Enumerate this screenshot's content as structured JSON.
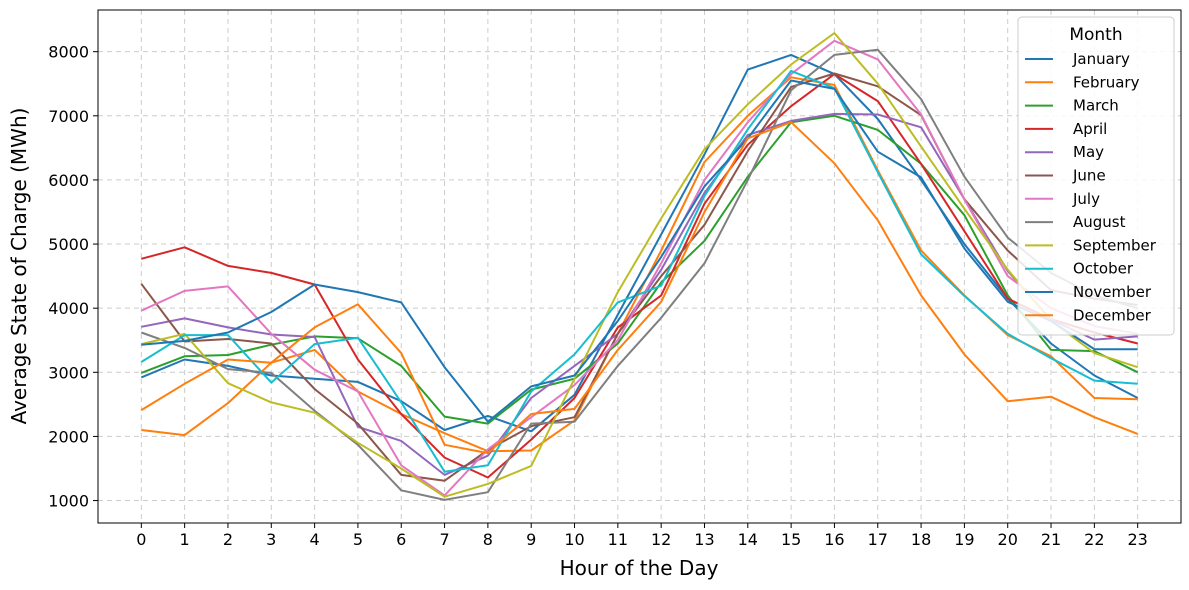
{
  "chart_data": {
    "type": "line",
    "title": "",
    "xlabel": "Hour of the Day",
    "ylabel": "Average State of Charge (MWh)",
    "x": [
      0,
      1,
      2,
      3,
      4,
      5,
      6,
      7,
      8,
      9,
      10,
      11,
      12,
      13,
      14,
      15,
      16,
      17,
      18,
      19,
      20,
      21,
      22,
      23
    ],
    "xlim": [
      -1,
      24
    ],
    "ylim": [
      650,
      8650
    ],
    "yticks": [
      1000,
      2000,
      3000,
      4000,
      5000,
      6000,
      7000,
      8000
    ],
    "grid": true,
    "legend": {
      "title": "Month",
      "placement": "top-right"
    },
    "series": [
      {
        "name": "January",
        "color": "#1f77b4",
        "values": [
          2920,
          3200,
          3100,
          2950,
          2900,
          2850,
          2550,
          2100,
          2320,
          2080,
          2650,
          3900,
          5150,
          6400,
          7720,
          7950,
          7650,
          6950,
          6000,
          5000,
          4150,
          3450,
          2950,
          2600
        ]
      },
      {
        "name": "February",
        "color": "#ff7f0e",
        "values": [
          2100,
          2020,
          2520,
          3150,
          3350,
          2700,
          2350,
          2050,
          1770,
          1780,
          2250,
          3600,
          4900,
          6280,
          7000,
          7600,
          7480,
          6150,
          4900,
          4200,
          3580,
          3250,
          2600,
          2580
        ]
      },
      {
        "name": "March",
        "color": "#2ca02c",
        "values": [
          2990,
          3250,
          3270,
          3430,
          3560,
          3530,
          3100,
          2310,
          2200,
          2730,
          2900,
          3450,
          4400,
          5050,
          6050,
          6900,
          7000,
          6780,
          6250,
          5450,
          4200,
          3350,
          3330,
          3000
        ]
      },
      {
        "name": "April",
        "color": "#d62728",
        "values": [
          4770,
          4950,
          4660,
          4550,
          4370,
          3200,
          2350,
          1670,
          1360,
          1950,
          2600,
          3700,
          4200,
          5630,
          6550,
          7150,
          7650,
          7230,
          6250,
          5200,
          4150,
          3830,
          3620,
          3450
        ]
      },
      {
        "name": "May",
        "color": "#9467bd",
        "values": [
          3710,
          3840,
          3700,
          3590,
          3550,
          2150,
          1930,
          1400,
          1700,
          2600,
          3100,
          3600,
          4600,
          5800,
          6700,
          6920,
          7030,
          7020,
          6820,
          5700,
          4580,
          3820,
          3510,
          3560
        ]
      },
      {
        "name": "June",
        "color": "#8c564b",
        "values": [
          4380,
          3480,
          3520,
          3450,
          2740,
          2200,
          1400,
          1310,
          1790,
          2160,
          2300,
          3600,
          4500,
          5300,
          6450,
          7450,
          7660,
          7460,
          7010,
          5700,
          4900,
          4280,
          4150,
          4050
        ]
      },
      {
        "name": "July",
        "color": "#e377c2",
        "values": [
          3960,
          4270,
          4340,
          3600,
          3040,
          2700,
          1550,
          1080,
          1800,
          2300,
          2800,
          3500,
          4700,
          6000,
          6900,
          7650,
          8170,
          7880,
          7020,
          5700,
          4500,
          4000,
          3720,
          3600
        ]
      },
      {
        "name": "August",
        "color": "#7f7f7f",
        "values": [
          3620,
          3380,
          3050,
          2990,
          2400,
          1870,
          1160,
          1010,
          1130,
          2200,
          2230,
          3100,
          3850,
          4700,
          6000,
          7400,
          7950,
          8030,
          7260,
          6050,
          5100,
          4550,
          4200,
          4000
        ]
      },
      {
        "name": "September",
        "color": "#bcbd22",
        "values": [
          3440,
          3600,
          2830,
          2530,
          2370,
          1900,
          1500,
          1060,
          1260,
          1540,
          2900,
          4250,
          5400,
          6480,
          7180,
          7800,
          8290,
          7500,
          6520,
          5550,
          4600,
          3800,
          3300,
          3080
        ]
      },
      {
        "name": "October",
        "color": "#17becf",
        "values": [
          3160,
          3580,
          3580,
          2840,
          3440,
          3540,
          2530,
          1450,
          1550,
          2700,
          3280,
          4090,
          4350,
          5750,
          6790,
          7700,
          7430,
          6120,
          4840,
          4190,
          3600,
          3220,
          2870,
          2820
        ]
      },
      {
        "name": "November",
        "color": "#1f77b4",
        "values": [
          3430,
          3490,
          3620,
          3940,
          4370,
          4250,
          4090,
          3080,
          2230,
          2780,
          2950,
          3800,
          4800,
          5900,
          6650,
          7550,
          7420,
          6440,
          6040,
          4930,
          4100,
          3800,
          3360,
          3360
        ]
      },
      {
        "name": "December",
        "color": "#ff7f0e",
        "values": [
          2410,
          2820,
          3200,
          3150,
          3700,
          4060,
          3300,
          1870,
          1740,
          2350,
          2430,
          3350,
          4100,
          5500,
          6650,
          6900,
          6260,
          5370,
          4200,
          3280,
          2550,
          2620,
          2300,
          2040
        ]
      }
    ]
  }
}
